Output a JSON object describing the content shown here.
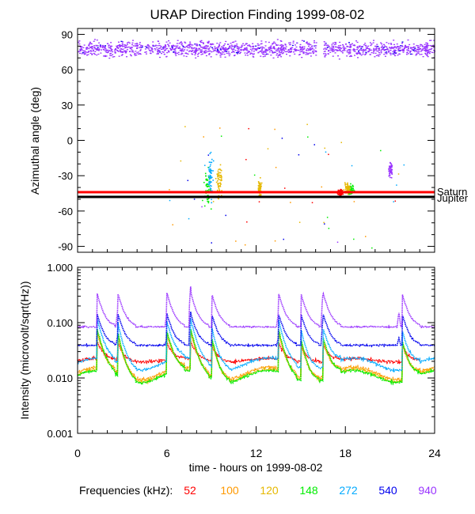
{
  "title": "URAP Direction Finding  1999-08-02",
  "chart_data": [
    {
      "type": "scatter",
      "panel": "azimuth",
      "ylabel": "Azimuthal angle (deg)",
      "xlim": [
        0,
        24
      ],
      "ylim": [
        -95,
        95
      ],
      "yticks": [
        90,
        60,
        30,
        0,
        -30,
        -60,
        -90
      ],
      "tick_labels": [
        "90",
        "60",
        "30",
        "0",
        "-30",
        "-60",
        "-90"
      ],
      "reference_lines": [
        {
          "name": "Saturn",
          "label": "Saturn",
          "y": -44,
          "color": "#ff0000"
        },
        {
          "name": "Jupiter",
          "label": "Jupiter",
          "y": -48,
          "color": "#000000"
        }
      ],
      "band_940khz": {
        "center_deg": 78,
        "spread_deg": 9,
        "x_range": [
          0,
          24
        ]
      },
      "clusters": [
        {
          "freq": "148",
          "x_center": 8.7,
          "y_center": -42,
          "x_spread": 0.35,
          "y_spread": 22
        },
        {
          "freq": "120",
          "x_center": 9.5,
          "y_center": -35,
          "x_spread": 0.3,
          "y_spread": 18
        },
        {
          "freq": "272",
          "x_center": 8.9,
          "y_center": -30,
          "x_spread": 0.25,
          "y_spread": 25
        },
        {
          "freq": "120",
          "x_center": 12.2,
          "y_center": -40,
          "x_spread": 0.2,
          "y_spread": 12
        },
        {
          "freq": "148",
          "x_center": 18.3,
          "y_center": -42,
          "x_spread": 0.35,
          "y_spread": 7
        },
        {
          "freq": "120",
          "x_center": 18.1,
          "y_center": -40,
          "x_spread": 0.3,
          "y_spread": 6
        },
        {
          "freq": "52",
          "x_center": 17.6,
          "y_center": -44,
          "x_spread": 0.25,
          "y_spread": 5
        },
        {
          "freq": "940",
          "x_center": 21.0,
          "y_center": -25,
          "x_spread": 0.2,
          "y_spread": 10
        }
      ]
    },
    {
      "type": "line",
      "panel": "intensity",
      "ylabel": "Intensity (microvolt/sqrt(Hz))",
      "xlabel": "time - hours on 1999-08-02",
      "xlim": [
        0,
        24
      ],
      "ylim_log": [
        0.001,
        1.0
      ],
      "yticks": [
        1.0,
        0.1,
        0.01,
        0.001
      ],
      "tick_labels": [
        "1.000",
        "0.100",
        "0.010",
        "0.001"
      ],
      "xticks": [
        0,
        6,
        12,
        18,
        24
      ],
      "xtick_labels": [
        "0",
        "6",
        "12",
        "18",
        "24"
      ],
      "series": [
        {
          "name": "52",
          "base": 0.021,
          "noise": 0.08,
          "peak_scale": 0.3
        },
        {
          "name": "100",
          "base": 0.0125,
          "noise": 0.08,
          "peak_scale": 1.0
        },
        {
          "name": "120",
          "base": 0.0115,
          "noise": 0.08,
          "peak_scale": 1.2
        },
        {
          "name": "148",
          "base": 0.011,
          "noise": 0.08,
          "peak_scale": 1.4
        },
        {
          "name": "272",
          "base": 0.0185,
          "noise": 0.07,
          "peak_scale": 1.2
        },
        {
          "name": "540",
          "base": 0.039,
          "noise": 0.05,
          "peak_scale": 0.8
        },
        {
          "name": "940",
          "base": 0.084,
          "noise": 0.04,
          "peak_scale": 0.9
        }
      ],
      "events_hours": [
        1.3,
        2.7,
        6.0,
        7.6,
        9.0,
        13.5,
        15.0,
        16.5,
        21.8
      ],
      "peaks_940": [
        {
          "t": 2.7,
          "v": 0.17
        },
        {
          "t": 6.0,
          "v": 0.15
        },
        {
          "t": 7.6,
          "v": 0.45
        },
        {
          "t": 13.5,
          "v": 0.15
        },
        {
          "t": 16.5,
          "v": 0.35
        },
        {
          "t": 21.6,
          "v": 0.15
        }
      ]
    }
  ],
  "legend": {
    "title": "Frequencies (kHz):",
    "items": [
      {
        "label": "52",
        "color": "#ff0000"
      },
      {
        "label": "100",
        "color": "#ff9900"
      },
      {
        "label": "120",
        "color": "#e6b800"
      },
      {
        "label": "148",
        "color": "#00ee00"
      },
      {
        "label": "272",
        "color": "#00aaff"
      },
      {
        "label": "540",
        "color": "#0000ee"
      },
      {
        "label": "940",
        "color": "#9933ff"
      }
    ]
  }
}
